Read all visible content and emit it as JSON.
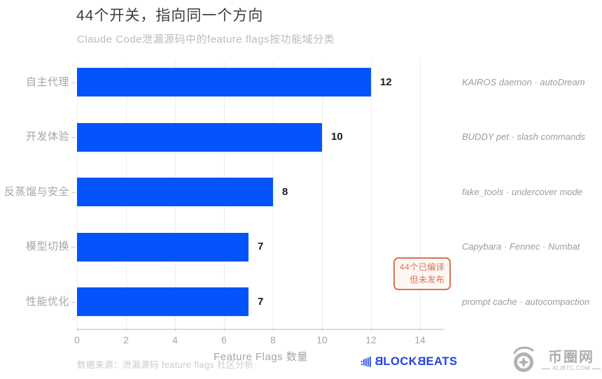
{
  "title": "44个开关，指向同一个方向",
  "subtitle": "Claude Code泄漏源码中的feature flags按功能域分类",
  "chart_data": {
    "type": "bar",
    "orientation": "horizontal",
    "categories": [
      "自主代理",
      "开发体验",
      "反蒸馏与安全",
      "模型切换",
      "性能优化"
    ],
    "values": [
      12,
      10,
      8,
      7,
      7
    ],
    "bar_annotations": [
      "KAIROS daemon · autoDream",
      "BUDDY pet · slash commands",
      "fake_tools · undercover mode",
      "Capybara · Fennec · Numbat",
      "prompt cache · autocompaction"
    ],
    "xlabel": "Feature Flags 数量",
    "xticks": [
      0,
      2,
      4,
      6,
      8,
      10,
      12,
      14
    ],
    "xlim": [
      0,
      15
    ],
    "grid": "vertical",
    "bar_color": "#0354fa",
    "note": {
      "lines": [
        "44个已编译",
        "但未发布"
      ],
      "color": "#dc7352"
    }
  },
  "footer": {
    "source": "数据来源：泄漏源码 feature flags 社区分析",
    "brand": "BLOCKBEATS",
    "watermark_name": "币圈网",
    "watermark_domain": "ALIBTC.COM"
  }
}
